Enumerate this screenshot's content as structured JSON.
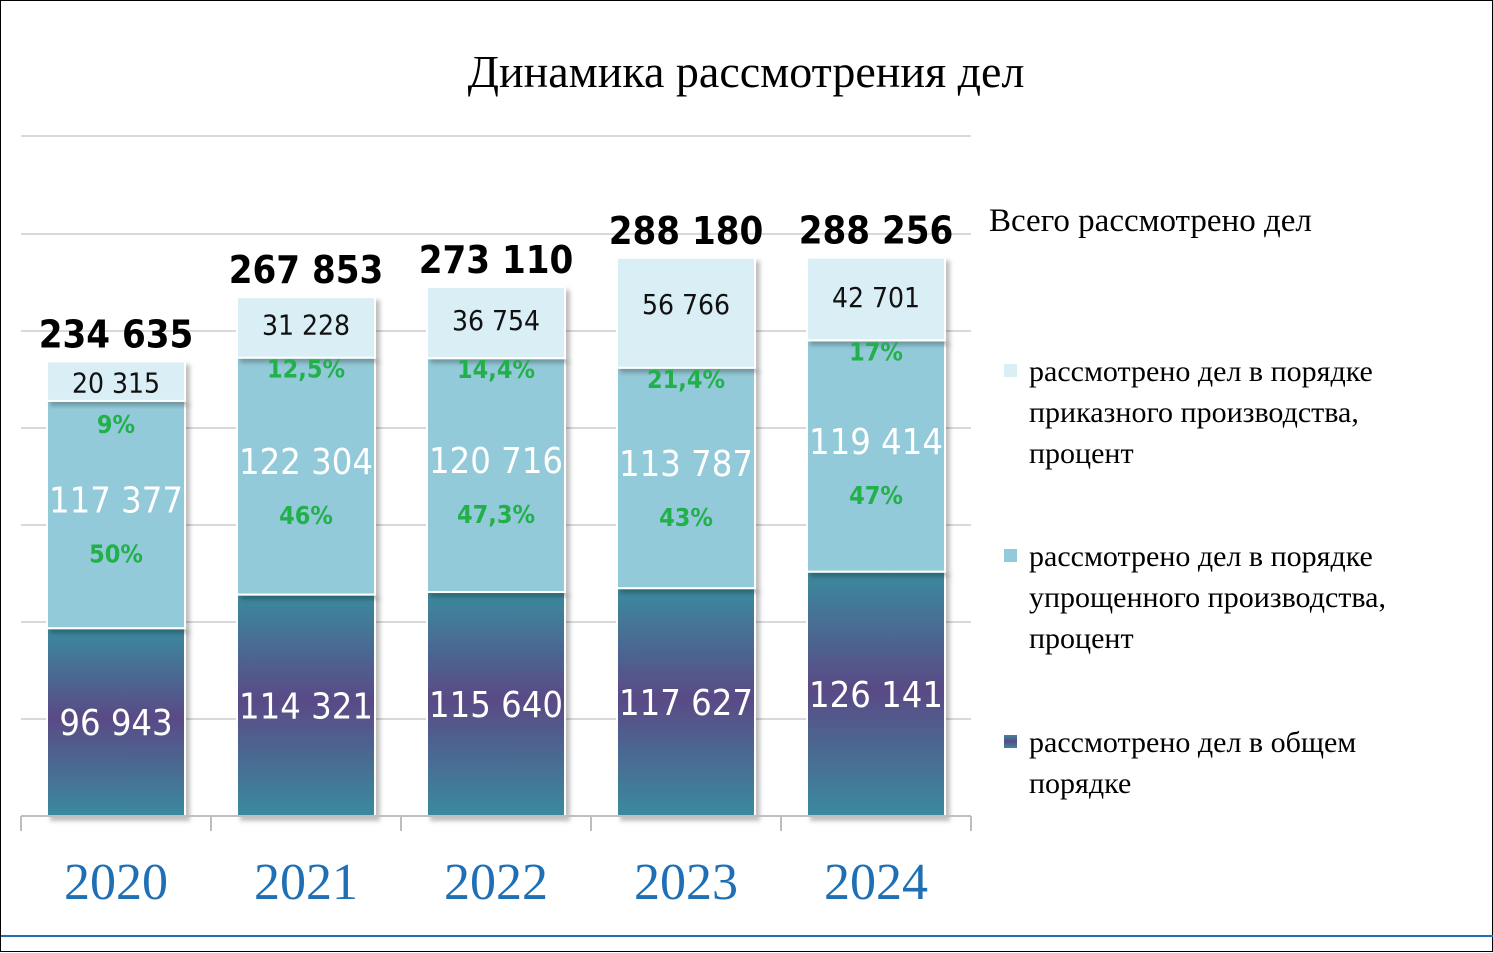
{
  "chart_data": {
    "type": "bar",
    "stacked": true,
    "title": "Динамика рассмотрения дел",
    "categories": [
      "2020",
      "2021",
      "2022",
      "2023",
      "2024"
    ],
    "totals": [
      {
        "label": "234 635",
        "value": 234635
      },
      {
        "label": "267 853",
        "value": 267853
      },
      {
        "label": "273 110",
        "value": 273110
      },
      {
        "label": "288 180",
        "value": 288180
      },
      {
        "label": "288 256",
        "value": 288256
      }
    ],
    "totals_legend_label": "Всего рассмотрено дел",
    "series": [
      {
        "name": "рассмотрено дел в общем порядке",
        "name_lines": [
          "рассмотрено дел в общем",
          "порядке"
        ],
        "color": "#3a8a9e",
        "values": [
          96943,
          114321,
          115640,
          117627,
          126141
        ],
        "value_labels": [
          "96 943",
          "114 321",
          "115 640",
          "117 627",
          "126 141"
        ],
        "percent_labels": [
          "",
          "",
          "",
          "",
          ""
        ]
      },
      {
        "name": "рассмотрено дел в порядке упрощенного производства, процент",
        "name_lines": [
          "рассмотрено дел в порядке",
          "упрощенного производства,",
          "процент"
        ],
        "color": "#93cad9",
        "values": [
          117377,
          122304,
          120716,
          113787,
          119414
        ],
        "value_labels": [
          "117 377",
          "122 304",
          "120 716",
          "113 787",
          "119 414"
        ],
        "percent_labels": [
          "50%",
          "46%",
          "47,3%",
          "43%",
          "47%"
        ]
      },
      {
        "name": "рассмотрено дел в порядке приказного производства, процент",
        "name_lines": [
          "рассмотрено дел в порядке",
          "приказного производства,",
          "процент"
        ],
        "color": "#d9eef5",
        "values": [
          20315,
          31228,
          36754,
          56766,
          42701
        ],
        "value_labels": [
          "20 315",
          "31 228",
          "36 754",
          "56 766",
          "42 701"
        ],
        "percent_labels": [
          "9%",
          "12,5%",
          "14,4%",
          "21,4%",
          "17%"
        ]
      }
    ],
    "grid": true,
    "legend_position": "right",
    "colors": {
      "year_label": "#1f6fb4",
      "percent_label": "#22b04b",
      "gridline": "#d9d9d9",
      "general_gradient": [
        "#3a8a9e",
        "#5a4a86"
      ]
    }
  }
}
